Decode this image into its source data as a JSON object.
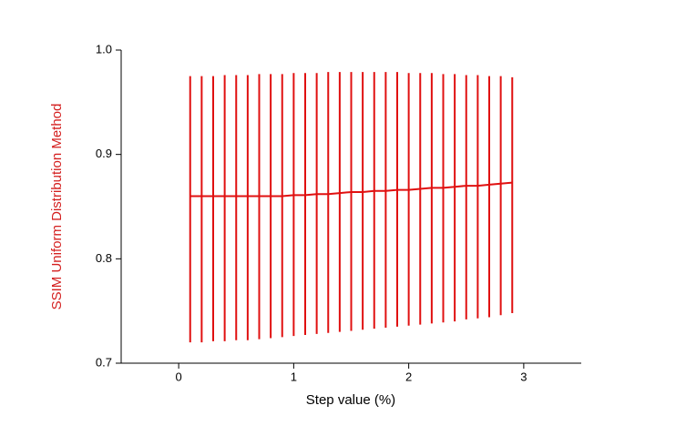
{
  "chart_data": {
    "type": "errorbar",
    "xlabel": "Step value (%)",
    "ylabel": "SSIM Uniform Distribution Method",
    "x": [
      0.1,
      0.2,
      0.3,
      0.4,
      0.5,
      0.6,
      0.7,
      0.8,
      0.9,
      1.0,
      1.1,
      1.2,
      1.3,
      1.4,
      1.5,
      1.6,
      1.7,
      1.8,
      1.9,
      2.0,
      2.1,
      2.2,
      2.3,
      2.4,
      2.5,
      2.6,
      2.7,
      2.8,
      2.9
    ],
    "values": [
      0.86,
      0.86,
      0.86,
      0.86,
      0.86,
      0.86,
      0.86,
      0.86,
      0.86,
      0.861,
      0.861,
      0.862,
      0.862,
      0.863,
      0.864,
      0.864,
      0.865,
      0.865,
      0.866,
      0.866,
      0.867,
      0.868,
      0.868,
      0.869,
      0.87,
      0.87,
      0.871,
      0.872,
      0.873
    ],
    "high": [
      0.975,
      0.975,
      0.975,
      0.976,
      0.976,
      0.976,
      0.977,
      0.977,
      0.977,
      0.978,
      0.978,
      0.978,
      0.979,
      0.979,
      0.979,
      0.979,
      0.979,
      0.979,
      0.979,
      0.978,
      0.978,
      0.978,
      0.977,
      0.977,
      0.976,
      0.976,
      0.975,
      0.975,
      0.974
    ],
    "low": [
      0.72,
      0.72,
      0.721,
      0.721,
      0.722,
      0.722,
      0.723,
      0.724,
      0.725,
      0.726,
      0.727,
      0.728,
      0.729,
      0.73,
      0.731,
      0.732,
      0.733,
      0.734,
      0.735,
      0.736,
      0.737,
      0.738,
      0.739,
      0.74,
      0.742,
      0.743,
      0.744,
      0.746,
      0.748
    ],
    "color": "#e01010",
    "label_color": "#d42020",
    "xlim": [
      -0.5,
      3.5
    ],
    "xticks": [
      0,
      1,
      2,
      3
    ],
    "ylim": [
      0.7,
      1.0
    ],
    "yticks": [
      {
        "value": 0.7,
        "label": "0.7"
      },
      {
        "value": 0.8,
        "label": "0.8"
      },
      {
        "value": 0.9,
        "label": "0.9"
      },
      {
        "value": 1.0,
        "label": "1.0"
      }
    ]
  }
}
